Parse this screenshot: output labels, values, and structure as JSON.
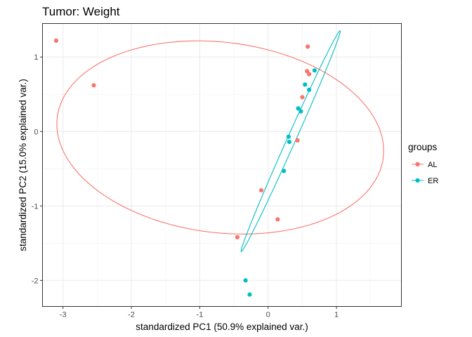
{
  "chart_data": {
    "type": "scatter",
    "title": "Tumor: Weight",
    "xlabel": "standardized PC1 (50.9% explained var.)",
    "ylabel": "standardized PC2 (15.0% explained var.)",
    "xlim": [
      -3.3,
      1.95
    ],
    "ylim": [
      -2.35,
      1.45
    ],
    "x_ticks": [
      -3,
      -2,
      -1,
      0,
      1
    ],
    "y_ticks": [
      -2,
      -1,
      0,
      1
    ],
    "x_tick_labels": [
      "-3",
      "-2",
      "-1",
      "0",
      "1"
    ],
    "y_tick_labels": [
      "-2",
      "-1",
      "0",
      "1"
    ],
    "grid": true,
    "legend": {
      "title": "groups",
      "position": "right"
    },
    "series": [
      {
        "name": "AL",
        "color": "#F8766D",
        "points": [
          [
            -3.1,
            1.22
          ],
          [
            -2.55,
            0.62
          ],
          [
            0.58,
            1.14
          ],
          [
            0.57,
            0.81
          ],
          [
            0.6,
            0.77
          ],
          [
            0.5,
            0.46
          ],
          [
            0.43,
            -0.12
          ],
          [
            -0.1,
            -0.79
          ],
          [
            0.14,
            -1.18
          ],
          [
            -0.45,
            -1.42
          ]
        ],
        "ellipse": {
          "center": [
            -0.7,
            -0.08
          ],
          "semi_axes": [
            2.4,
            1.28
          ],
          "rotation_deg": -6
        }
      },
      {
        "name": "ER",
        "color": "#00BFC4",
        "points": [
          [
            0.68,
            0.82
          ],
          [
            0.54,
            0.63
          ],
          [
            0.6,
            0.56
          ],
          [
            0.44,
            0.31
          ],
          [
            0.48,
            0.27
          ],
          [
            0.3,
            -0.07
          ],
          [
            0.31,
            -0.14
          ],
          [
            0.23,
            -0.53
          ],
          [
            -0.33,
            -2.0
          ],
          [
            -0.27,
            -2.19
          ]
        ],
        "ellipse": {
          "center": [
            0.33,
            -0.13
          ],
          "semi_axes": [
            1.65,
            0.06
          ],
          "rotation_deg": 64
        }
      }
    ]
  }
}
